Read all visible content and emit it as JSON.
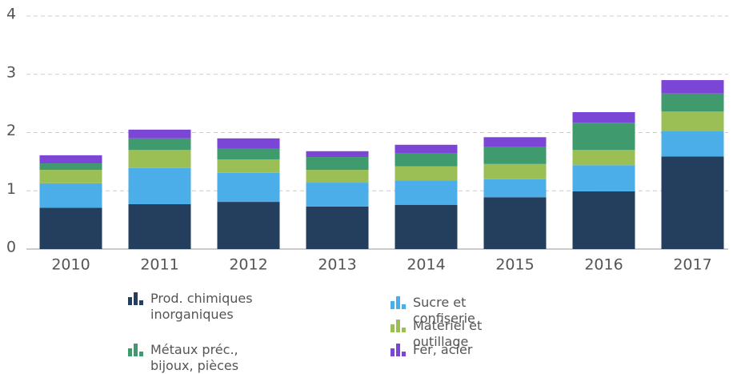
{
  "chart_data": {
    "type": "stacked_bar",
    "categories": [
      "2010",
      "2011",
      "2012",
      "2013",
      "2014",
      "2015",
      "2016",
      "2017"
    ],
    "series": [
      {
        "name": "Prod. chimiques inorganiques",
        "color": "#243f5e",
        "values": [
          0.71,
          0.77,
          0.81,
          0.73,
          0.76,
          0.89,
          0.99,
          1.59
        ]
      },
      {
        "name": "Sucre et confiserie",
        "color": "#4baee8",
        "values": [
          0.42,
          0.62,
          0.5,
          0.41,
          0.42,
          0.31,
          0.45,
          0.44
        ]
      },
      {
        "name": "Matériel et outillage",
        "color": "#9bbf55",
        "values": [
          0.23,
          0.31,
          0.23,
          0.22,
          0.24,
          0.26,
          0.26,
          0.33
        ]
      },
      {
        "name": "Métaux préc., bijoux, pièces",
        "color": "#3f9a6e",
        "values": [
          0.11,
          0.2,
          0.18,
          0.22,
          0.22,
          0.29,
          0.47,
          0.31
        ]
      },
      {
        "name": "Fer, acier",
        "color": "#7b45d6",
        "values": [
          0.14,
          0.15,
          0.18,
          0.1,
          0.15,
          0.17,
          0.18,
          0.23
        ]
      }
    ],
    "ylim": [
      0,
      4
    ],
    "yticks": [
      0,
      1,
      2,
      3,
      4
    ],
    "grid": true
  }
}
